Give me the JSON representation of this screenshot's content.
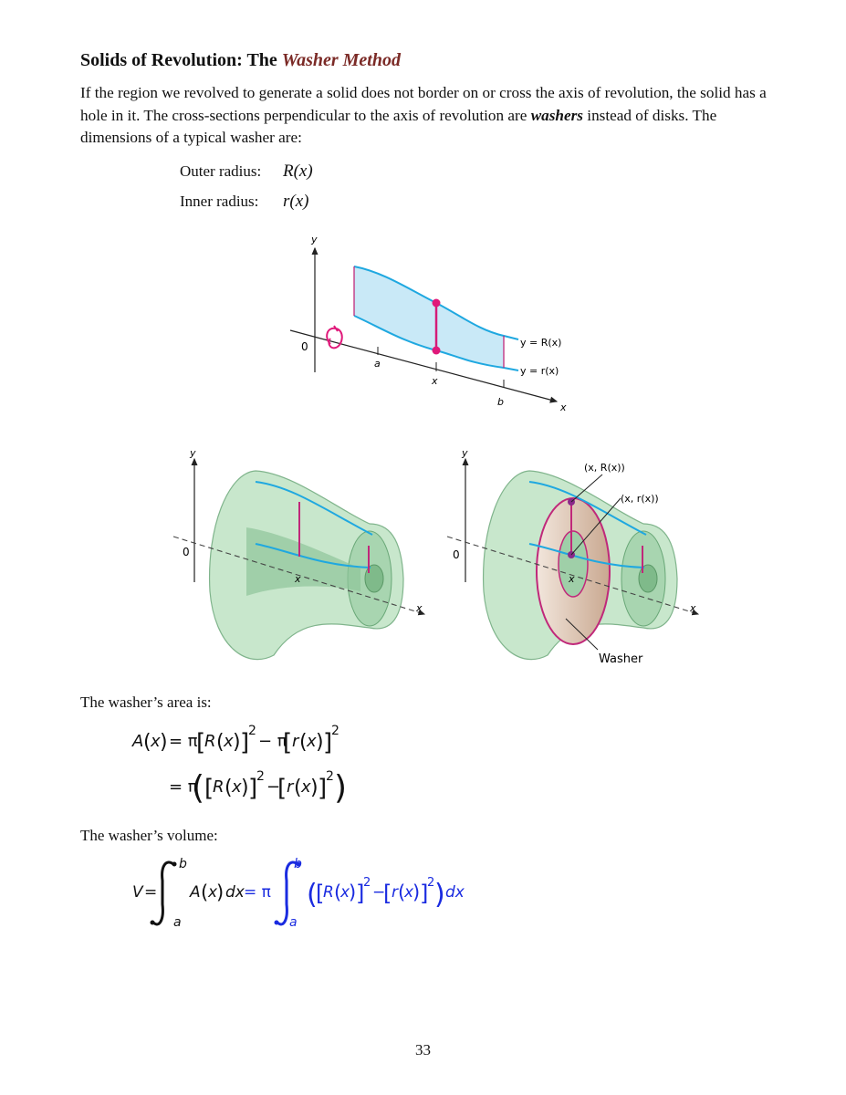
{
  "heading": {
    "prefix": "Solids of Revolution: The ",
    "highlight": "Washer Method"
  },
  "intro": {
    "part1": "If the region we revolved to generate a solid does not border on or cross the axis of revolution, the solid has a hole in it. The cross-sections perpendicular to the axis of revolution are ",
    "emphasis": "washers",
    "part2": " instead of disks. The dimensions of a typical washer are:"
  },
  "radii": {
    "outer_label": "Outer radius:",
    "outer_value": "R(x)",
    "inner_label": "Inner radius:",
    "inner_value": "r(x)"
  },
  "figure_top": {
    "y_axis": "y",
    "x_axis": "x",
    "origin": "0",
    "tick_a": "a",
    "tick_x": "x",
    "tick_b": "b",
    "upper_curve": "y = R(x)",
    "lower_curve": "y = r(x)"
  },
  "figure_left": {
    "y_axis": "y",
    "x_axis": "x",
    "origin": "0",
    "tick_x": "x"
  },
  "figure_right": {
    "y_axis": "y",
    "x_axis": "x",
    "origin": "0",
    "tick_x": "x",
    "point_outer": "(x, R(x))",
    "point_inner": "(x, r(x))",
    "washer_label": "Washer"
  },
  "area_caption": "The washer’s area is:",
  "volume_caption": "The washer’s volume:",
  "page_number": "33"
}
